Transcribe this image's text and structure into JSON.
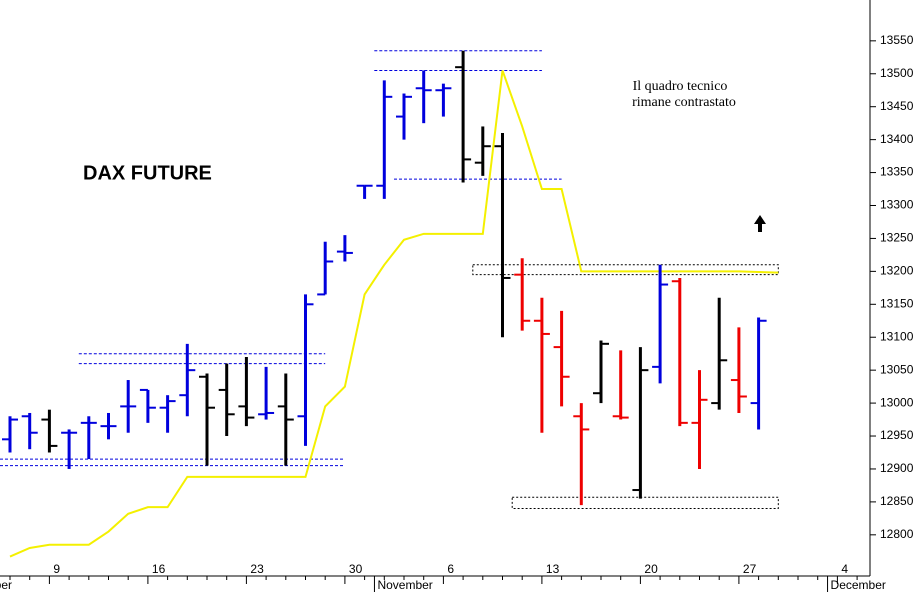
{
  "chart_data": {
    "type": "ohlc",
    "title": "DAX FUTURE",
    "annotation": [
      "Il quadro tecnico",
      "rimane contrastato"
    ],
    "categories": [
      null,
      null,
      "9",
      null,
      null,
      null,
      null,
      "16",
      null,
      null,
      null,
      null,
      "23",
      null,
      null,
      null,
      null,
      "30",
      null,
      null,
      null,
      null,
      "6",
      null,
      null,
      null,
      null,
      "13",
      null,
      null,
      null,
      null,
      "20",
      null,
      null,
      null,
      null,
      "27",
      null,
      null,
      null,
      null,
      "4",
      null
    ],
    "month_labels": [
      {
        "label": "ber",
        "category": 0
      },
      {
        "label": "November",
        "category": 19
      },
      {
        "label": "December",
        "category": 42
      }
    ],
    "open": [
      12945,
      12980,
      12975,
      12955,
      12970,
      12965,
      12995,
      13020,
      12993,
      13012,
      13040,
      13020,
      12995,
      12983,
      12995,
      12980,
      13165,
      13230,
      13330,
      13330,
      13435,
      13478,
      13475,
      13510,
      13365,
      13390,
      13195,
      13125,
      13085,
      12980,
      13015,
      12980,
      12868,
      13055,
      13185,
      12970,
      13000,
      13035,
      13000,
      null,
      null,
      null,
      null,
      null
    ],
    "high": [
      12980,
      12985,
      12990,
      12960,
      12980,
      12985,
      13035,
      13020,
      13012,
      13090,
      13045,
      13060,
      13070,
      13055,
      13045,
      13165,
      13245,
      13255,
      13330,
      13490,
      13470,
      13505,
      13485,
      13535,
      13420,
      13410,
      13220,
      13160,
      13140,
      13000,
      13095,
      13080,
      13085,
      13210,
      13190,
      13050,
      13160,
      13115,
      13130,
      null,
      null,
      null,
      null,
      null
    ],
    "low": [
      12925,
      12930,
      12925,
      12900,
      12915,
      12945,
      12955,
      12970,
      12955,
      12980,
      12905,
      12950,
      12965,
      12975,
      12905,
      12935,
      13165,
      13215,
      13310,
      13310,
      13400,
      13425,
      13435,
      13335,
      13345,
      13100,
      13110,
      12955,
      12995,
      12845,
      13000,
      12975,
      12855,
      13030,
      12965,
      12900,
      12990,
      12985,
      12960,
      null,
      null,
      null,
      null,
      null
    ],
    "close": [
      12975,
      12955,
      12935,
      12955,
      12970,
      12965,
      12995,
      12993,
      13003,
      13050,
      12993,
      12983,
      12978,
      12985,
      12975,
      13150,
      13215,
      13228,
      13330,
      13465,
      13465,
      13475,
      13478,
      13370,
      13390,
      13190,
      13125,
      13105,
      13040,
      12960,
      13090,
      12978,
      13050,
      13180,
      12970,
      13005,
      13065,
      13010,
      13125,
      null,
      null,
      null,
      null,
      null
    ],
    "colors": [
      "#0000dd",
      "#0000dd",
      "#000000",
      "#0000dd",
      "#0000dd",
      "#0000dd",
      "#0000dd",
      "#0000dd",
      "#0000dd",
      "#0000dd",
      "#000000",
      "#000000",
      "#000000",
      "#0000dd",
      "#000000",
      "#0000dd",
      "#0000dd",
      "#0000dd",
      "#0000dd",
      "#0000dd",
      "#0000dd",
      "#0000dd",
      "#0000dd",
      "#000000",
      "#000000",
      "#000000",
      "#ee0000",
      "#ee0000",
      "#ee0000",
      "#ee0000",
      "#000000",
      "#ee0000",
      "#000000",
      "#0000dd",
      "#ee0000",
      "#ee0000",
      "#000000",
      "#ee0000",
      "#0000dd",
      null,
      null,
      null,
      null,
      null
    ],
    "line": {
      "color": "#f4f000",
      "values": [
        12767,
        12780,
        12785,
        12785,
        12785,
        12805,
        12832,
        12842,
        12842,
        12888,
        12888,
        12888,
        12888,
        12888,
        12888,
        12888,
        12995,
        13025,
        13165,
        13210,
        13248,
        13257,
        13257,
        13257,
        13257,
        13505,
        13420,
        13325,
        13325,
        13200,
        13200,
        13200,
        13200,
        13200,
        13200,
        13200,
        13200,
        13200,
        13199,
        13198,
        null,
        null,
        null,
        null
      ]
    },
    "levels": [
      {
        "value": 13535,
        "from": 19,
        "to": 27,
        "color": "#0000dd"
      },
      {
        "value": 13505,
        "from": 19,
        "to": 27,
        "color": "#0000dd"
      },
      {
        "value": 13340,
        "from": 20,
        "to": 28,
        "color": "#0000dd"
      },
      {
        "value": 13075,
        "from": 4,
        "to": 16,
        "color": "#0000dd"
      },
      {
        "value": 13060,
        "from": 4,
        "to": 16,
        "color": "#0000dd"
      },
      {
        "value": 12915,
        "from": 0,
        "to": 17,
        "color": "#0000dd"
      },
      {
        "value": 12905,
        "from": 0,
        "to": 17,
        "color": "#0000dd"
      }
    ],
    "zones": [
      {
        "low": 13195,
        "high": 13210,
        "from": 24,
        "to": 39
      },
      {
        "low": 12840,
        "high": 12857,
        "from": 26,
        "to": 39
      }
    ],
    "ylim": [
      12739,
      13612
    ],
    "yticks": [
      12800,
      12850,
      12900,
      12950,
      13000,
      13050,
      13100,
      13150,
      13200,
      13250,
      13300,
      13350,
      13400,
      13450,
      13500,
      13550
    ]
  }
}
